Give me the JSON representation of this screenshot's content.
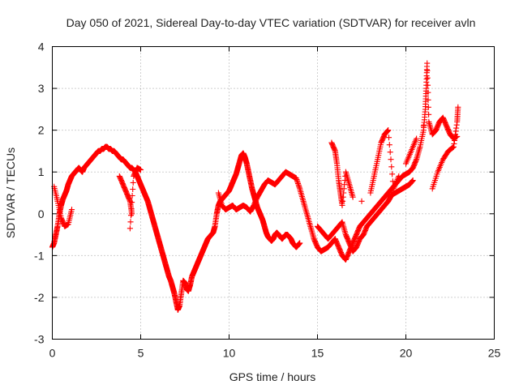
{
  "chart_data": {
    "type": "scatter",
    "title": "Day 050 of 2021, Sidereal Day-to-day VTEC variation (SDTVAR) for receiver avln",
    "xlabel": "GPS time / hours",
    "ylabel": "SDTVAR / TECUs",
    "xlim": [
      0,
      25
    ],
    "ylim": [
      -3,
      4
    ],
    "xticks": [
      "0",
      "5",
      "10",
      "15",
      "20",
      "25"
    ],
    "yticks": [
      "-3",
      "-2",
      "-1",
      "0",
      "1",
      "2",
      "3",
      "4"
    ],
    "grid": true,
    "marker": "+",
    "series_color": "#ff0000",
    "series": [
      {
        "name": "SDTVAR",
        "points": [
          [
            0.0,
            -0.8
          ],
          [
            0.1,
            -0.7
          ],
          [
            0.2,
            -0.5
          ],
          [
            0.3,
            -0.3
          ],
          [
            0.4,
            0.0
          ],
          [
            0.5,
            0.2
          ],
          [
            0.6,
            0.35
          ],
          [
            0.7,
            0.45
          ],
          [
            0.8,
            0.55
          ],
          [
            0.9,
            0.7
          ],
          [
            1.0,
            0.8
          ],
          [
            1.1,
            0.9
          ],
          [
            1.2,
            0.95
          ],
          [
            1.3,
            1.0
          ],
          [
            1.4,
            1.05
          ],
          [
            1.5,
            1.1
          ],
          [
            1.6,
            1.05
          ],
          [
            1.7,
            1.0
          ],
          [
            1.8,
            1.1
          ],
          [
            1.9,
            1.15
          ],
          [
            2.0,
            1.2
          ],
          [
            2.1,
            1.25
          ],
          [
            2.2,
            1.3
          ],
          [
            2.3,
            1.35
          ],
          [
            2.4,
            1.4
          ],
          [
            2.5,
            1.45
          ],
          [
            2.6,
            1.5
          ],
          [
            2.7,
            1.5
          ],
          [
            2.8,
            1.55
          ],
          [
            2.9,
            1.55
          ],
          [
            3.0,
            1.6
          ],
          [
            3.1,
            1.6
          ],
          [
            3.2,
            1.55
          ],
          [
            3.3,
            1.55
          ],
          [
            3.4,
            1.5
          ],
          [
            3.5,
            1.5
          ],
          [
            3.6,
            1.45
          ],
          [
            3.7,
            1.4
          ],
          [
            3.8,
            1.35
          ],
          [
            3.9,
            1.3
          ],
          [
            4.0,
            1.3
          ],
          [
            4.1,
            1.25
          ],
          [
            4.2,
            1.2
          ],
          [
            4.3,
            1.15
          ],
          [
            4.4,
            1.1
          ],
          [
            4.5,
            1.1
          ],
          [
            4.6,
            1.05
          ],
          [
            4.7,
            1.0
          ],
          [
            4.8,
            0.9
          ],
          [
            4.9,
            0.8
          ],
          [
            5.0,
            0.7
          ],
          [
            5.1,
            0.6
          ],
          [
            5.2,
            0.5
          ],
          [
            5.3,
            0.4
          ],
          [
            5.4,
            0.3
          ],
          [
            5.5,
            0.15
          ],
          [
            5.6,
            0.0
          ],
          [
            5.7,
            -0.15
          ],
          [
            5.8,
            -0.3
          ],
          [
            5.9,
            -0.45
          ],
          [
            6.0,
            -0.6
          ],
          [
            6.1,
            -0.75
          ],
          [
            6.2,
            -0.9
          ],
          [
            6.3,
            -1.05
          ],
          [
            6.4,
            -1.2
          ],
          [
            6.5,
            -1.35
          ],
          [
            6.6,
            -1.5
          ],
          [
            6.7,
            -1.6
          ],
          [
            6.8,
            -1.75
          ],
          [
            6.9,
            -1.9
          ],
          [
            7.0,
            -2.1
          ],
          [
            7.1,
            -2.3
          ],
          [
            7.2,
            -2.2
          ],
          [
            7.3,
            -1.9
          ],
          [
            7.4,
            -1.6
          ],
          [
            7.5,
            -1.65
          ],
          [
            7.6,
            -1.8
          ],
          [
            7.7,
            -1.85
          ],
          [
            7.8,
            -1.7
          ],
          [
            7.9,
            -1.5
          ],
          [
            8.0,
            -1.4
          ],
          [
            8.1,
            -1.3
          ],
          [
            8.2,
            -1.2
          ],
          [
            8.3,
            -1.1
          ],
          [
            8.4,
            -1.0
          ],
          [
            8.5,
            -0.9
          ],
          [
            8.6,
            -0.8
          ],
          [
            8.7,
            -0.7
          ],
          [
            8.8,
            -0.6
          ],
          [
            8.9,
            -0.55
          ],
          [
            9.0,
            -0.5
          ],
          [
            9.1,
            -0.45
          ],
          [
            9.2,
            -0.3
          ],
          [
            9.3,
            0.0
          ],
          [
            9.4,
            0.2
          ],
          [
            9.5,
            0.3
          ],
          [
            9.6,
            0.35
          ],
          [
            9.7,
            0.4
          ],
          [
            9.8,
            0.45
          ],
          [
            9.9,
            0.5
          ],
          [
            10.0,
            0.55
          ],
          [
            10.1,
            0.65
          ],
          [
            10.2,
            0.75
          ],
          [
            10.3,
            0.85
          ],
          [
            10.4,
            0.95
          ],
          [
            10.5,
            1.1
          ],
          [
            10.6,
            1.25
          ],
          [
            10.7,
            1.4
          ],
          [
            10.8,
            1.45
          ],
          [
            10.9,
            1.35
          ],
          [
            11.0,
            1.2
          ],
          [
            11.1,
            1.0
          ],
          [
            11.2,
            0.8
          ],
          [
            11.3,
            0.6
          ],
          [
            11.4,
            0.45
          ],
          [
            11.5,
            0.3
          ],
          [
            11.6,
            0.15
          ],
          [
            11.7,
            0.05
          ],
          [
            11.8,
            -0.05
          ],
          [
            11.9,
            -0.15
          ],
          [
            12.0,
            -0.3
          ],
          [
            12.1,
            -0.45
          ],
          [
            12.2,
            -0.55
          ],
          [
            12.3,
            -0.6
          ],
          [
            12.4,
            -0.65
          ],
          [
            12.5,
            -0.6
          ],
          [
            12.6,
            -0.5
          ],
          [
            12.7,
            -0.45
          ],
          [
            12.8,
            -0.5
          ],
          [
            12.9,
            -0.55
          ],
          [
            13.0,
            -0.6
          ],
          [
            13.1,
            -0.55
          ],
          [
            13.2,
            -0.5
          ],
          [
            13.3,
            -0.5
          ],
          [
            13.4,
            -0.55
          ],
          [
            13.5,
            -0.6
          ],
          [
            13.6,
            -0.7
          ],
          [
            13.7,
            -0.75
          ],
          [
            13.8,
            -0.8
          ],
          [
            13.9,
            -0.75
          ],
          [
            14.0,
            -0.7
          ],
          [
            9.4,
            0.5
          ],
          [
            9.6,
            0.2
          ],
          [
            9.8,
            0.1
          ],
          [
            10.0,
            0.15
          ],
          [
            10.2,
            0.2
          ],
          [
            10.4,
            0.1
          ],
          [
            10.6,
            0.15
          ],
          [
            10.8,
            0.2
          ],
          [
            11.0,
            0.15
          ],
          [
            11.2,
            0.05
          ],
          [
            11.4,
            0.2
          ],
          [
            11.6,
            0.4
          ],
          [
            11.8,
            0.55
          ],
          [
            12.0,
            0.7
          ],
          [
            12.2,
            0.8
          ],
          [
            12.4,
            0.75
          ],
          [
            12.6,
            0.7
          ],
          [
            12.8,
            0.8
          ],
          [
            13.0,
            0.9
          ],
          [
            13.2,
            1.0
          ],
          [
            13.4,
            0.95
          ],
          [
            13.6,
            0.9
          ],
          [
            13.8,
            0.85
          ],
          [
            14.0,
            0.6
          ],
          [
            14.2,
            0.3
          ],
          [
            14.4,
            0.0
          ],
          [
            14.6,
            -0.3
          ],
          [
            14.8,
            -0.6
          ],
          [
            15.0,
            -0.8
          ],
          [
            15.2,
            -0.9
          ],
          [
            15.4,
            -0.85
          ],
          [
            15.6,
            -0.8
          ],
          [
            15.8,
            -0.7
          ],
          [
            16.0,
            -0.6
          ],
          [
            16.2,
            -0.8
          ],
          [
            16.4,
            -1.0
          ],
          [
            16.6,
            -1.1
          ],
          [
            16.8,
            -0.9
          ],
          [
            17.0,
            -0.7
          ],
          [
            17.2,
            -0.5
          ],
          [
            17.4,
            -0.3
          ],
          [
            17.6,
            -0.2
          ],
          [
            17.8,
            -0.1
          ],
          [
            18.0,
            0.0
          ],
          [
            18.2,
            0.1
          ],
          [
            18.4,
            0.2
          ],
          [
            18.6,
            0.3
          ],
          [
            18.8,
            0.4
          ],
          [
            19.0,
            0.5
          ],
          [
            19.2,
            0.6
          ],
          [
            19.4,
            0.7
          ],
          [
            19.6,
            0.8
          ],
          [
            19.8,
            0.9
          ],
          [
            20.0,
            0.95
          ],
          [
            20.2,
            1.0
          ],
          [
            20.4,
            1.1
          ],
          [
            20.6,
            1.3
          ],
          [
            20.8,
            1.6
          ],
          [
            21.0,
            2.0
          ],
          [
            21.1,
            2.5
          ],
          [
            21.15,
            3.0
          ],
          [
            21.2,
            3.6
          ],
          [
            21.3,
            2.2
          ],
          [
            21.5,
            1.9
          ],
          [
            21.7,
            2.0
          ],
          [
            21.9,
            2.2
          ],
          [
            22.1,
            2.3
          ],
          [
            22.3,
            2.1
          ],
          [
            22.5,
            1.9
          ],
          [
            22.7,
            1.8
          ],
          [
            22.9,
            1.85
          ],
          [
            15.0,
            -0.3
          ],
          [
            15.2,
            -0.4
          ],
          [
            15.4,
            -0.5
          ],
          [
            15.6,
            -0.6
          ],
          [
            15.8,
            -0.5
          ],
          [
            16.0,
            -0.4
          ],
          [
            16.2,
            -0.3
          ],
          [
            16.4,
            -0.2
          ],
          [
            16.6,
            -0.5
          ],
          [
            16.8,
            -0.7
          ],
          [
            17.0,
            -0.9
          ],
          [
            17.2,
            -0.8
          ],
          [
            17.4,
            -0.6
          ],
          [
            17.6,
            -0.5
          ],
          [
            17.8,
            -0.3
          ],
          [
            18.0,
            -0.2
          ],
          [
            18.2,
            -0.1
          ],
          [
            18.4,
            0.0
          ],
          [
            18.6,
            0.1
          ],
          [
            18.8,
            0.2
          ],
          [
            19.0,
            0.3
          ],
          [
            19.2,
            0.45
          ],
          [
            19.4,
            0.5
          ],
          [
            19.6,
            0.55
          ],
          [
            19.8,
            0.6
          ],
          [
            20.0,
            0.65
          ],
          [
            20.2,
            0.7
          ],
          [
            20.4,
            0.8
          ],
          [
            15.8,
            1.7
          ],
          [
            16.0,
            1.5
          ],
          [
            16.1,
            1.2
          ],
          [
            16.2,
            0.8
          ],
          [
            16.3,
            0.5
          ],
          [
            16.4,
            0.2
          ],
          [
            16.6,
            1.0
          ],
          [
            16.8,
            0.7
          ],
          [
            17.0,
            0.4
          ],
          [
            17.5,
            0.3
          ],
          [
            18.0,
            0.5
          ],
          [
            18.2,
            0.9
          ],
          [
            18.4,
            1.3
          ],
          [
            18.6,
            1.7
          ],
          [
            18.8,
            1.9
          ],
          [
            19.0,
            2.0
          ],
          [
            19.3,
            0.6
          ],
          [
            19.6,
            0.9
          ],
          [
            20.0,
            1.2
          ],
          [
            20.3,
            1.5
          ],
          [
            20.6,
            1.8
          ],
          [
            21.0,
            2.1
          ],
          [
            21.5,
            0.6
          ],
          [
            21.8,
            1.0
          ],
          [
            22.1,
            1.3
          ],
          [
            22.4,
            1.5
          ],
          [
            22.7,
            1.6
          ],
          [
            22.9,
            2.2
          ],
          [
            22.95,
            2.55
          ],
          [
            0.1,
            0.65
          ],
          [
            0.3,
            0.3
          ],
          [
            0.5,
            -0.1
          ],
          [
            0.7,
            -0.3
          ],
          [
            0.9,
            -0.25
          ],
          [
            1.1,
            0.1
          ],
          [
            3.8,
            0.9
          ],
          [
            4.0,
            0.7
          ],
          [
            4.2,
            0.5
          ],
          [
            4.4,
            0.3
          ],
          [
            4.5,
            0.0
          ],
          [
            4.4,
            -0.35
          ],
          [
            4.6,
            0.9
          ],
          [
            4.8,
            1.1
          ],
          [
            5.0,
            1.05
          ]
        ]
      }
    ]
  }
}
